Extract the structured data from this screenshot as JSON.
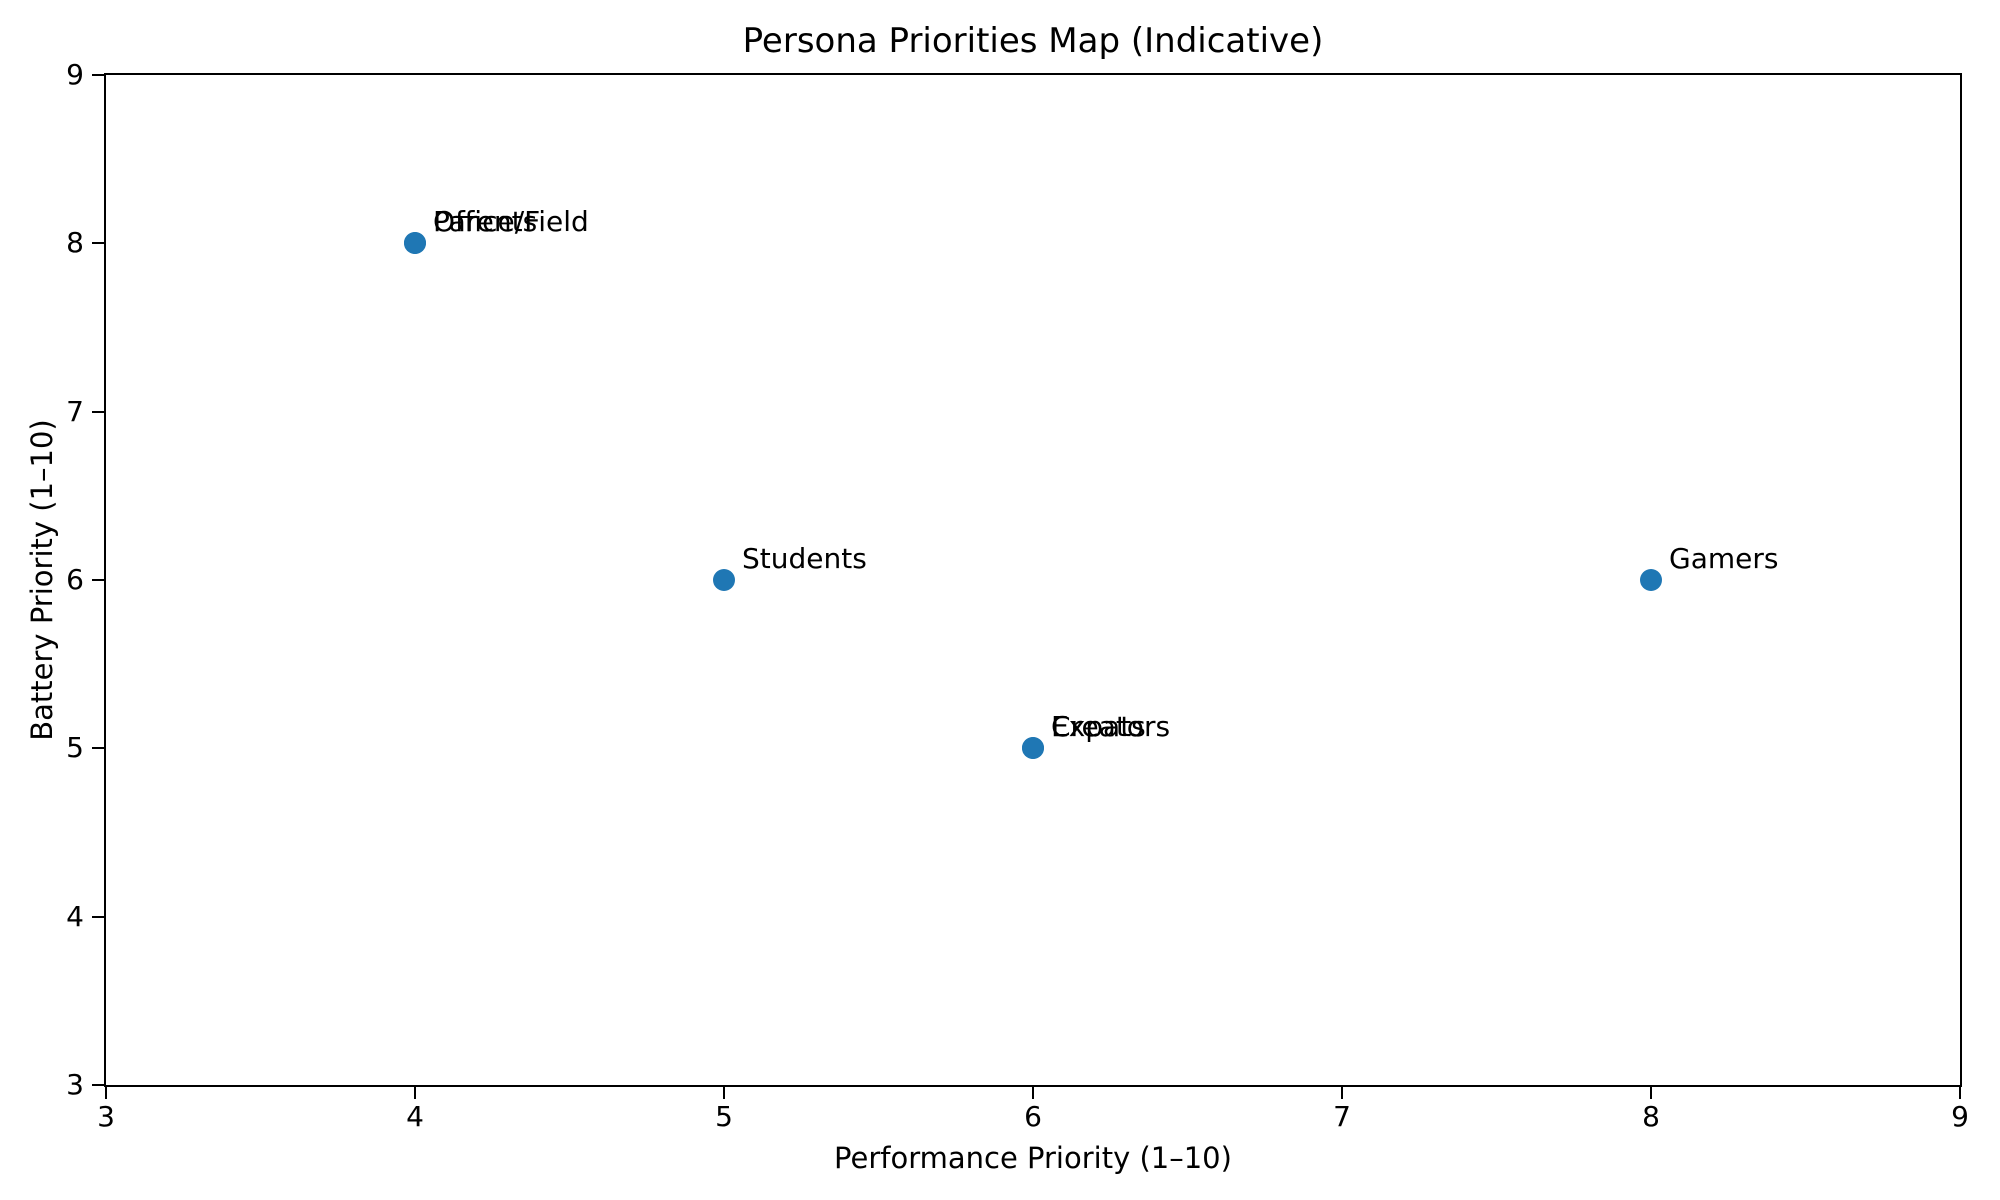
{
  "chart_data": {
    "type": "scatter",
    "title": "Persona Priorities Map (Indicative)",
    "xlabel": "Performance Priority (1–10)",
    "ylabel": "Battery Priority (1–10)",
    "xlim": [
      3,
      9
    ],
    "ylim": [
      3,
      9
    ],
    "x_ticks": [
      "3",
      "4",
      "5",
      "6",
      "7",
      "8",
      "9"
    ],
    "y_ticks": [
      "3",
      "4",
      "5",
      "6",
      "7",
      "8",
      "9"
    ],
    "grid": false,
    "legend": null,
    "point_color": "#1f77b4",
    "text_color": "#000000",
    "points": [
      {
        "label": "Parents",
        "x": 4,
        "y": 8
      },
      {
        "label": "Office/Field",
        "x": 4,
        "y": 8
      },
      {
        "label": "Students",
        "x": 5,
        "y": 6
      },
      {
        "label": "Creators",
        "x": 6,
        "y": 5
      },
      {
        "label": "Expats",
        "x": 6,
        "y": 5
      },
      {
        "label": "Gamers",
        "x": 8,
        "y": 6
      }
    ]
  }
}
